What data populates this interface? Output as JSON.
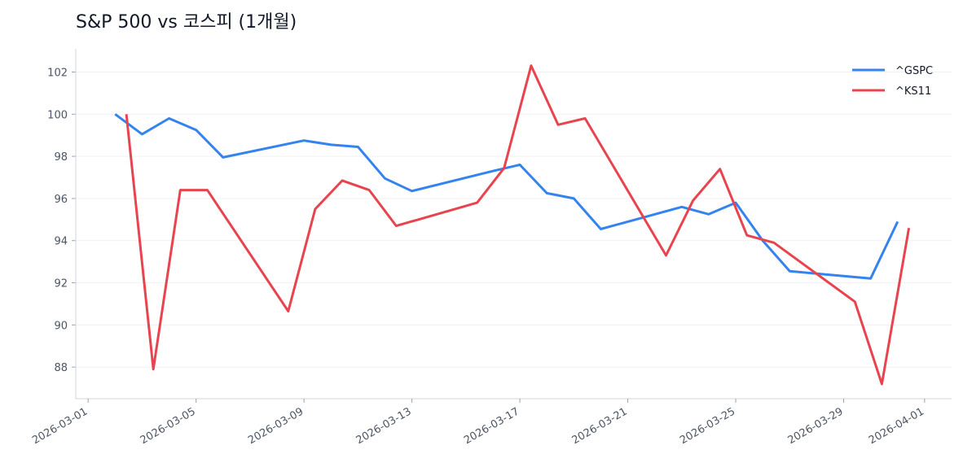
{
  "chart_data": {
    "type": "line",
    "title": "S&P 500 vs 코스피 (1개월)",
    "xlim": [
      "2026-02-28T13:00",
      "2026-04-02T00:00"
    ],
    "xticks": [
      "2026-03-01",
      "2026-03-05",
      "2026-03-09",
      "2026-03-13",
      "2026-03-17",
      "2026-03-21",
      "2026-03-25",
      "2026-03-29",
      "2026-04-01"
    ],
    "ylim": [
      86.5,
      103.1
    ],
    "yticks": [
      88,
      90,
      92,
      94,
      96,
      98,
      100,
      102
    ],
    "grid": true,
    "legend": "upper right",
    "series": [
      {
        "name": "^GSPC",
        "color": "#3483ee",
        "x": [
          "2026-03-02",
          "2026-03-03",
          "2026-03-04",
          "2026-03-05",
          "2026-03-06",
          "2026-03-09",
          "2026-03-10",
          "2026-03-11",
          "2026-03-12",
          "2026-03-13",
          "2026-03-16",
          "2026-03-17",
          "2026-03-18",
          "2026-03-19",
          "2026-03-20",
          "2026-03-23",
          "2026-03-24",
          "2026-03-25",
          "2026-03-26",
          "2026-03-27",
          "2026-03-30",
          "2026-03-31"
        ],
        "values": [
          100.0,
          99.05,
          99.8,
          99.25,
          97.95,
          98.75,
          98.55,
          98.45,
          96.95,
          96.35,
          97.3,
          97.6,
          96.25,
          96.0,
          94.55,
          95.6,
          95.25,
          95.8,
          94.0,
          92.55,
          92.2,
          94.9
        ]
      },
      {
        "name": "^KS11",
        "color": "#e8444f",
        "x": [
          "2026-03-02T10:00",
          "2026-03-03T10:00",
          "2026-03-04T10:00",
          "2026-03-05T10:00",
          "2026-03-08T10:00",
          "2026-03-09T10:00",
          "2026-03-10T10:00",
          "2026-03-11T10:00",
          "2026-03-12T10:00",
          "2026-03-15T10:00",
          "2026-03-16T10:00",
          "2026-03-17T10:00",
          "2026-03-18T10:00",
          "2026-03-19T10:00",
          "2026-03-22T10:00",
          "2026-03-23T10:00",
          "2026-03-24T10:00",
          "2026-03-25T10:00",
          "2026-03-26T10:00",
          "2026-03-29T10:00",
          "2026-03-30T10:00",
          "2026-03-31T10:00"
        ],
        "values": [
          100.0,
          87.9,
          96.4,
          96.4,
          90.65,
          95.5,
          96.85,
          96.4,
          94.7,
          95.8,
          97.45,
          102.3,
          99.5,
          99.8,
          93.3,
          95.9,
          97.4,
          94.25,
          93.9,
          91.1,
          87.2,
          94.6
        ]
      }
    ]
  }
}
